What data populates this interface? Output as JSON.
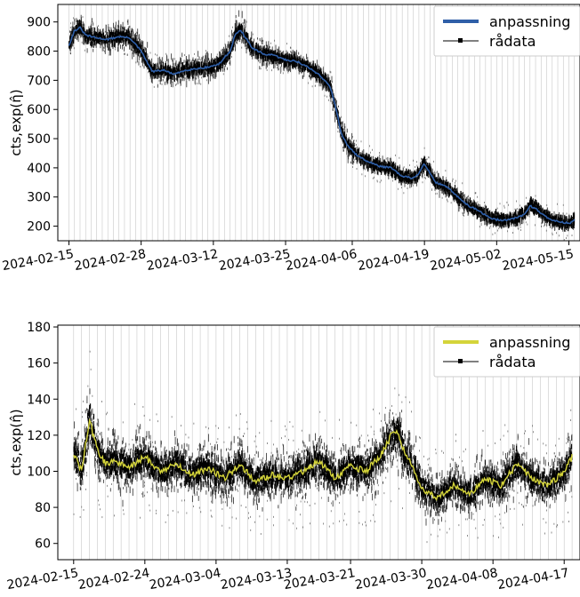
{
  "chart_data": [
    {
      "type": "line",
      "ylabel": "cts,exp(η̂)",
      "ylim": [
        150,
        960
      ],
      "xlim": [
        "2024-02-13",
        "2024-05-17"
      ],
      "yticks": [
        200,
        300,
        400,
        500,
        600,
        700,
        800,
        900
      ],
      "xticks": [
        "2024-02-15",
        "2024-02-28",
        "2024-03-12",
        "2024-03-25",
        "2024-04-06",
        "2024-04-19",
        "2024-05-02",
        "2024-05-15"
      ],
      "legend": {
        "placement": "top-right",
        "entries": [
          "anpassning",
          "rådata"
        ]
      },
      "series": [
        {
          "name": "anpassning",
          "color": "#2f5fa8",
          "x": [
            "2024-02-15",
            "2024-02-16",
            "2024-02-17",
            "2024-02-18",
            "2024-02-20",
            "2024-02-22",
            "2024-02-24",
            "2024-02-26",
            "2024-02-28",
            "2024-03-01",
            "2024-03-03",
            "2024-03-05",
            "2024-03-07",
            "2024-03-09",
            "2024-03-11",
            "2024-03-13",
            "2024-03-15",
            "2024-03-16",
            "2024-03-17",
            "2024-03-19",
            "2024-03-21",
            "2024-03-23",
            "2024-03-25",
            "2024-03-27",
            "2024-03-29",
            "2024-03-31",
            "2024-04-02",
            "2024-04-03",
            "2024-04-04",
            "2024-04-05",
            "2024-04-06",
            "2024-04-07",
            "2024-04-09",
            "2024-04-11",
            "2024-04-13",
            "2024-04-15",
            "2024-04-17",
            "2024-04-18",
            "2024-04-19",
            "2024-04-21",
            "2024-04-23",
            "2024-04-25",
            "2024-04-27",
            "2024-04-29",
            "2024-05-01",
            "2024-05-03",
            "2024-05-05",
            "2024-05-07",
            "2024-05-08",
            "2024-05-09",
            "2024-05-11",
            "2024-05-13",
            "2024-05-15",
            "2024-05-16"
          ],
          "values": [
            820,
            870,
            880,
            855,
            845,
            840,
            850,
            845,
            800,
            730,
            735,
            720,
            735,
            740,
            745,
            755,
            800,
            860,
            870,
            810,
            790,
            785,
            770,
            765,
            745,
            720,
            680,
            610,
            520,
            480,
            460,
            440,
            420,
            405,
            400,
            370,
            365,
            380,
            415,
            350,
            335,
            300,
            270,
            250,
            225,
            220,
            225,
            240,
            270,
            260,
            230,
            215,
            210,
            220
          ]
        },
        {
          "name": "rådata",
          "color": "#000000",
          "x": [],
          "values": []
        }
      ],
      "regions": [
        {
          "from": "2024-02-15",
          "to": "2024-03-16",
          "center": 820,
          "spread": 55
        },
        {
          "from": "2024-03-16",
          "to": "2024-03-22",
          "center": 830,
          "spread": 60
        },
        {
          "from": "2024-03-22",
          "to": "2024-04-02",
          "center": 760,
          "spread": 40
        },
        {
          "from": "2024-04-02",
          "to": "2024-04-07",
          "center": 560,
          "spread": 60
        },
        {
          "from": "2024-04-07",
          "to": "2024-04-14",
          "center": 410,
          "spread": 30
        },
        {
          "from": "2024-04-14",
          "to": "2024-04-20",
          "center": 385,
          "spread": 30
        },
        {
          "from": "2024-04-20",
          "to": "2024-04-27",
          "center": 315,
          "spread": 30
        },
        {
          "from": "2024-04-27",
          "to": "2024-05-16",
          "center": 230,
          "spread": 25
        }
      ]
    },
    {
      "type": "line",
      "ylabel": "cts,exp(η̂)",
      "ylim": [
        51,
        181
      ],
      "xlim": [
        "2024-02-13",
        "2024-04-19"
      ],
      "yticks": [
        60,
        80,
        100,
        120,
        140,
        160,
        180
      ],
      "xticks": [
        "2024-02-15",
        "2024-02-24",
        "2024-03-04",
        "2024-03-13",
        "2024-03-21",
        "2024-03-30",
        "2024-04-08",
        "2024-04-17"
      ],
      "legend": {
        "placement": "top-right",
        "entries": [
          "anpassning",
          "rådata"
        ]
      },
      "series": [
        {
          "name": "anpassning",
          "color": "#d4d43a",
          "x": [
            "2024-02-15",
            "2024-02-16",
            "2024-02-17",
            "2024-02-18",
            "2024-02-19",
            "2024-02-20",
            "2024-02-22",
            "2024-02-24",
            "2024-02-26",
            "2024-02-28",
            "2024-03-01",
            "2024-03-03",
            "2024-03-05",
            "2024-03-07",
            "2024-03-09",
            "2024-03-11",
            "2024-03-13",
            "2024-03-15",
            "2024-03-17",
            "2024-03-19",
            "2024-03-21",
            "2024-03-23",
            "2024-03-25",
            "2024-03-26",
            "2024-03-27",
            "2024-03-28",
            "2024-03-29",
            "2024-03-30",
            "2024-04-01",
            "2024-04-03",
            "2024-04-05",
            "2024-04-07",
            "2024-04-09",
            "2024-04-11",
            "2024-04-13",
            "2024-04-15",
            "2024-04-17",
            "2024-04-18"
          ],
          "values": [
            110,
            100,
            128,
            112,
            104,
            106,
            102,
            108,
            100,
            104,
            98,
            102,
            96,
            104,
            94,
            98,
            96,
            100,
            106,
            96,
            103,
            100,
            110,
            119,
            121,
            108,
            102,
            90,
            85,
            92,
            87,
            96,
            92,
            104,
            96,
            92,
            100,
            108
          ]
        },
        {
          "name": "rådata",
          "color": "#000000",
          "x": [],
          "values": []
        }
      ]
    }
  ]
}
